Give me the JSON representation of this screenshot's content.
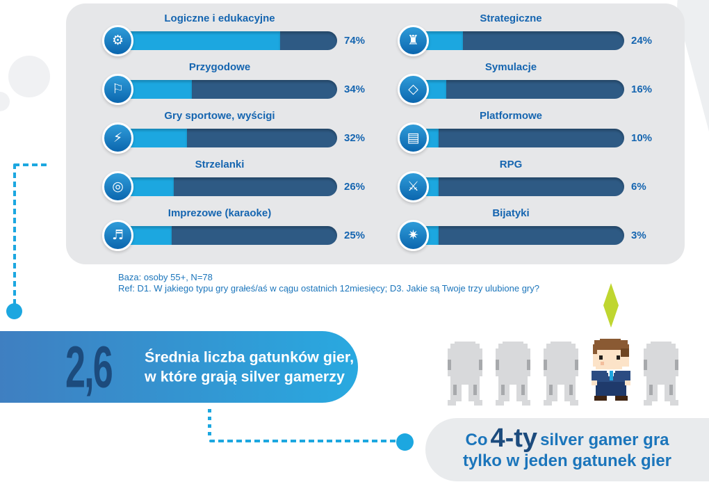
{
  "chart_data": {
    "type": "bar",
    "orientation": "horizontal",
    "unit": "%",
    "xlim": [
      0,
      100
    ],
    "categories": [
      "Logiczne i edukacyjne",
      "Przygodowe",
      "Gry sportowe, wyścigi",
      "Strzelanki",
      "Imprezowe (karaoke)",
      "Strategiczne",
      "Symulacje",
      "Platformowe",
      "RPG",
      "Bijatyki"
    ],
    "values": [
      74,
      34,
      32,
      26,
      25,
      24,
      16,
      10,
      6,
      3
    ],
    "title": "",
    "note": "Baza: osoby 55+, N=78",
    "ref": "Ref: D1. W jakiego typu gry grałeś/aś w cągu ostatnich 12miesięcy; D3. Jakie są Twoje trzy ulubione gry?",
    "stats": {
      "average_genres": "2,6",
      "average_caption": "Średnia liczba gatunków gier, w które grają silver gamerzy",
      "quarter_fact": "Co 4-ty silver gamer gra tylko w jeden gatunek gier"
    }
  },
  "columns": {
    "left": [
      {
        "label": "Logiczne i edukacyjne",
        "value": 74,
        "pct_label": "74%",
        "icon": "brain-icon",
        "glyph": "⚙"
      },
      {
        "label": "Przygodowe",
        "value": 34,
        "pct_label": "34%",
        "icon": "map-icon",
        "glyph": "⚐"
      },
      {
        "label": "Gry sportowe, wyścigi",
        "value": 32,
        "pct_label": "32%",
        "icon": "race-car-icon",
        "glyph": "⚡"
      },
      {
        "label": "Strzelanki",
        "value": 26,
        "pct_label": "26%",
        "icon": "crosshair-icon",
        "glyph": "◎"
      },
      {
        "label": "Imprezowe (karaoke)",
        "value": 25,
        "pct_label": "25%",
        "icon": "microphone-icon",
        "glyph": "♬"
      }
    ],
    "right": [
      {
        "label": "Strategiczne",
        "value": 24,
        "pct_label": "24%",
        "icon": "chess-rook-icon",
        "glyph": "♜"
      },
      {
        "label": "Symulacje",
        "value": 16,
        "pct_label": "16%",
        "icon": "plumbob-icon",
        "glyph": "◇"
      },
      {
        "label": "Platformowe",
        "value": 10,
        "pct_label": "10%",
        "icon": "platform-icon",
        "glyph": "▤"
      },
      {
        "label": "RPG",
        "value": 6,
        "pct_label": "6%",
        "icon": "sword-icon",
        "glyph": "⚔"
      },
      {
        "label": "Bijatyki",
        "value": 3,
        "pct_label": "3%",
        "icon": "fist-icon",
        "glyph": "✷"
      }
    ]
  },
  "footnote": {
    "line1": "Baza: osoby 55+, N=78",
    "line2": "Ref: D1. W jakiego typu gry grałeś/aś w cągu ostatnich 12miesięcy; D3. Jakie są Twoje trzy ulubione gry?"
  },
  "banner": {
    "value": "2,6",
    "line1": "Średnia liczba gatunków gier,",
    "line2": "w które grają silver gamerzy"
  },
  "quarter_fact": {
    "prefix": "Co",
    "highlight": "4-ty",
    "suffix": "silver gamer gra",
    "line2": "tylko w jeden gatunek gier"
  },
  "people": {
    "count": 5,
    "highlighted_position": 4
  },
  "colors": {
    "bar_fill": "#1CA7E0",
    "bar_track": "#2E5A84",
    "label_blue": "#1565B0",
    "text_blue": "#1B75BB",
    "navy": "#1C4B7D",
    "panel_bg": "#E6E7E9",
    "plumbob_green": "#BFD630",
    "banner_gradient_left": "#3F7FC1",
    "banner_gradient_right": "#29A9E0"
  }
}
